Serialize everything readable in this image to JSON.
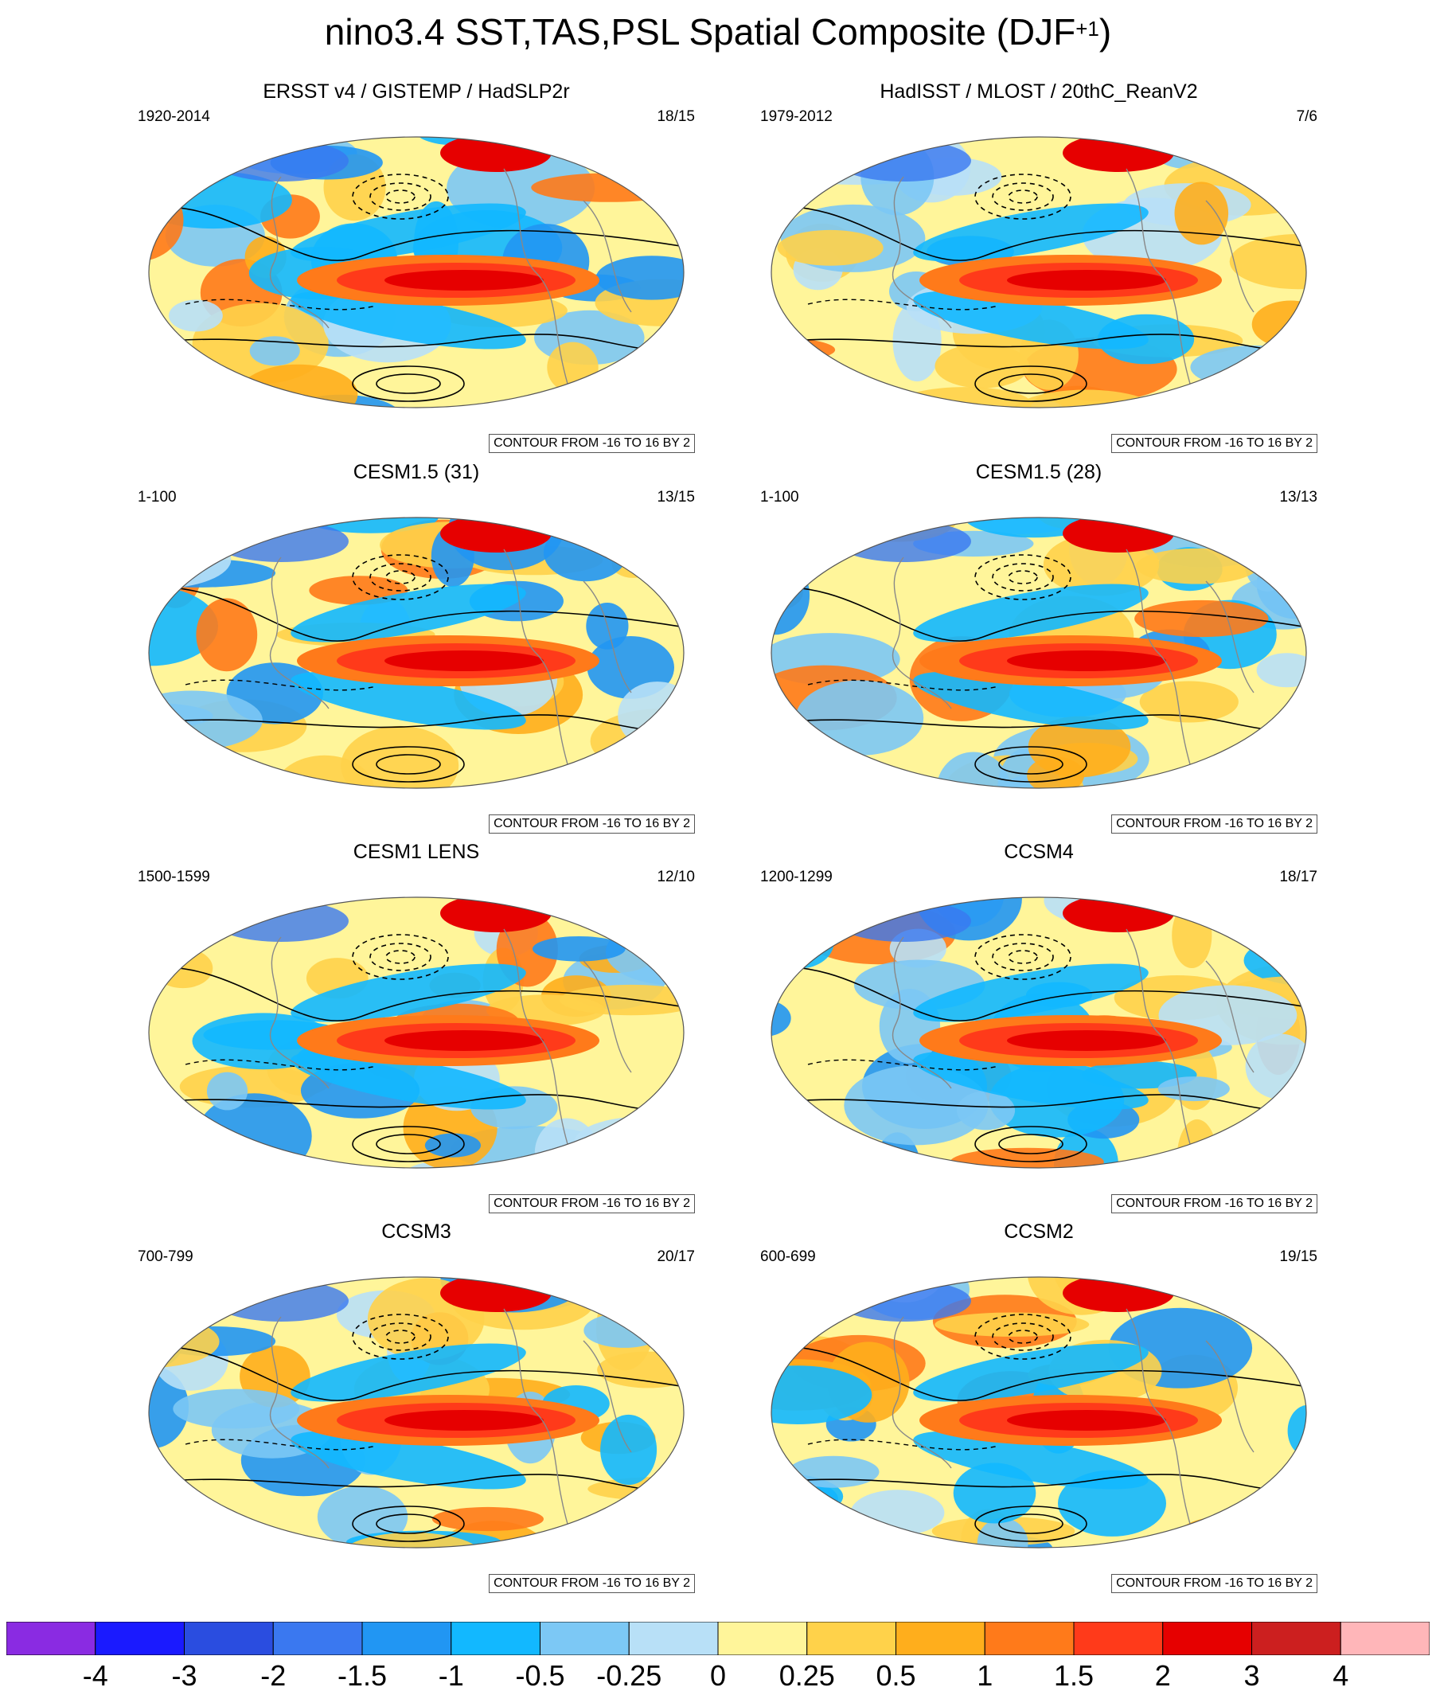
{
  "title": {
    "main": "nino3.4 SST,TAS,PSL Spatial Composite (DJF",
    "superscript": "+1",
    "closing": ")"
  },
  "contour_note": "CONTOUR FROM -16 TO 16 BY 2",
  "panels": [
    {
      "title": "ERSST v4 / GISTEMP / HadSLP2r",
      "period": "1920-2014",
      "count": "18/15"
    },
    {
      "title": "HadISST / MLOST / 20thC_ReanV2",
      "period": "1979-2012",
      "count": "7/6"
    },
    {
      "title": "CESM1.5 (31)",
      "period": "1-100",
      "count": "13/15"
    },
    {
      "title": "CESM1.5 (28)",
      "period": "1-100",
      "count": "13/13"
    },
    {
      "title": "CESM1 LENS",
      "period": "1500-1599",
      "count": "12/10"
    },
    {
      "title": "CCSM4",
      "period": "1200-1299",
      "count": "18/17"
    },
    {
      "title": "CCSM3",
      "period": "700-799",
      "count": "20/17"
    },
    {
      "title": "CCSM2",
      "period": "600-699",
      "count": "19/15"
    }
  ],
  "colorbar": {
    "labels": [
      "-4",
      "-3",
      "-2",
      "-1.5",
      "-1",
      "-0.5",
      "-0.25",
      "0",
      "0.25",
      "0.5",
      "1",
      "1.5",
      "2",
      "3",
      "4"
    ],
    "colors": [
      "#8a2be2",
      "#1a1aff",
      "#2a4de0",
      "#3a78f0",
      "#2196f3",
      "#12b8ff",
      "#7cc8f5",
      "#b8e0f7",
      "#fff59a",
      "#ffd24a",
      "#ffae1c",
      "#ff7a1a",
      "#ff3a1a",
      "#e60000",
      "#cc1f1f",
      "#ffb6b9"
    ]
  }
}
